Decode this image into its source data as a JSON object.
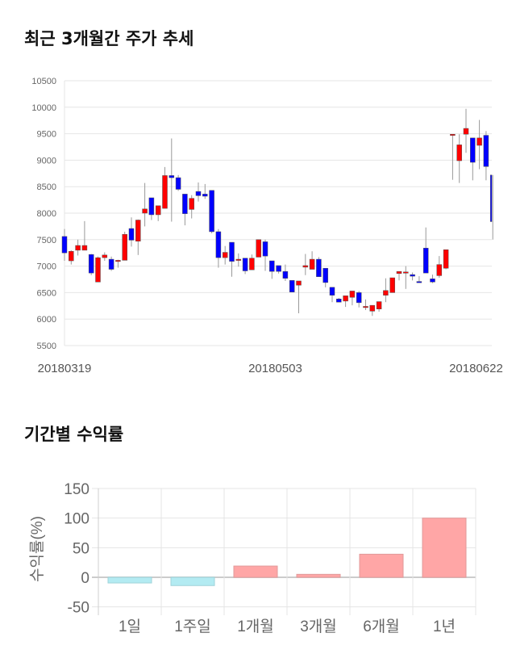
{
  "sections": {
    "price_title": "최근 3개월간 주가 추세",
    "return_title": "기간별 수익률"
  },
  "colors": {
    "up": "#ff0000",
    "down": "#0000ff",
    "wick": "#999999",
    "positive_bar": "#ffa6a6",
    "negative_bar": "#b3ebf2"
  },
  "chart_data": [
    {
      "type": "candlestick",
      "title": "최근 3개월간 주가 추세",
      "ylim": [
        5500,
        10500
      ],
      "yticks": [
        "5500",
        "6000",
        "6500",
        "7000",
        "7500",
        "8000",
        "8500",
        "9000",
        "9500",
        "10000",
        "10500"
      ],
      "xticks": [
        {
          "label": "20180319",
          "index": 0
        },
        {
          "label": "20180503",
          "index": 31.5
        },
        {
          "label": "20180622",
          "index": 61.5
        }
      ],
      "grid": true,
      "candles": [
        [
          7560,
          7700,
          7100,
          7250
        ],
        [
          7100,
          7300,
          7030,
          7280
        ],
        [
          7300,
          7500,
          7200,
          7390
        ],
        [
          7300,
          7850,
          7300,
          7390
        ],
        [
          7220,
          7230,
          6830,
          6870
        ],
        [
          6700,
          7180,
          6700,
          7160
        ],
        [
          7160,
          7260,
          7100,
          7210
        ],
        [
          7130,
          7180,
          6910,
          6940
        ],
        [
          7090,
          7120,
          6970,
          7110
        ],
        [
          7110,
          7650,
          7110,
          7600
        ],
        [
          7710,
          7920,
          7370,
          7490
        ],
        [
          7470,
          7880,
          7210,
          7870
        ],
        [
          8000,
          8570,
          7750,
          8080
        ],
        [
          8290,
          8290,
          7870,
          7970
        ],
        [
          7970,
          8140,
          7850,
          8140
        ],
        [
          8090,
          8870,
          8090,
          8710
        ],
        [
          8710,
          9410,
          7840,
          8670
        ],
        [
          8670,
          8720,
          8420,
          8450
        ],
        [
          8360,
          8360,
          7770,
          7990
        ],
        [
          8070,
          8340,
          7900,
          8280
        ],
        [
          8410,
          8580,
          8220,
          8330
        ],
        [
          8360,
          8550,
          8270,
          8320
        ],
        [
          8430,
          8430,
          7620,
          7650
        ],
        [
          7650,
          7700,
          6970,
          7160
        ],
        [
          7160,
          7380,
          7030,
          7260
        ],
        [
          7450,
          7450,
          6800,
          7090
        ],
        [
          7110,
          7240,
          6990,
          7130
        ],
        [
          7150,
          7150,
          6850,
          6910
        ],
        [
          6930,
          7220,
          6930,
          7150
        ],
        [
          7170,
          7500,
          7170,
          7500
        ],
        [
          7460,
          7500,
          6910,
          7190
        ],
        [
          7100,
          7100,
          6760,
          6900
        ],
        [
          7010,
          7010,
          6860,
          6900
        ],
        [
          6900,
          7030,
          6720,
          6770
        ],
        [
          6730,
          6730,
          6510,
          6510
        ],
        [
          6640,
          6720,
          6110,
          6720
        ],
        [
          6980,
          7230,
          6830,
          7010
        ],
        [
          6940,
          7280,
          6940,
          7130
        ],
        [
          7130,
          7170,
          6800,
          6800
        ],
        [
          6960,
          6960,
          6600,
          6690
        ],
        [
          6600,
          6600,
          6320,
          6450
        ],
        [
          6380,
          6400,
          6320,
          6320
        ],
        [
          6340,
          6440,
          6230,
          6440
        ],
        [
          6410,
          6530,
          6260,
          6530
        ],
        [
          6500,
          6530,
          6220,
          6310
        ],
        [
          6220,
          6370,
          6170,
          6240
        ],
        [
          6150,
          6260,
          6060,
          6260
        ],
        [
          6190,
          6330,
          6140,
          6330
        ],
        [
          6450,
          6770,
          6320,
          6540
        ],
        [
          6500,
          6780,
          6500,
          6780
        ],
        [
          6860,
          6900,
          6730,
          6900
        ],
        [
          6890,
          7000,
          6570,
          6890
        ],
        [
          6840,
          6880,
          6730,
          6810
        ],
        [
          6710,
          6810,
          6700,
          6700
        ],
        [
          7340,
          7730,
          6870,
          6870
        ],
        [
          6760,
          6840,
          6680,
          6700
        ],
        [
          6820,
          7190,
          6780,
          7030
        ],
        [
          6960,
          7310,
          6940,
          7310
        ],
        [
          9490,
          9490,
          8630,
          9490
        ],
        [
          8990,
          9490,
          8570,
          9290
        ],
        [
          9490,
          9970,
          9140,
          9600
        ],
        [
          9420,
          9420,
          8620,
          8960
        ],
        [
          9280,
          9760,
          8830,
          9420
        ],
        [
          9470,
          9550,
          8620,
          8880
        ],
        [
          8720,
          8720,
          7500,
          7840
        ]
      ]
    },
    {
      "type": "bar",
      "title": "기간별 수익률",
      "ylabel": "수익률(%)",
      "ylim": [
        -60,
        150
      ],
      "yticks": [
        "-50",
        "0",
        "50",
        "100",
        "150"
      ],
      "categories": [
        "1일",
        "1주일",
        "1개월",
        "3개월",
        "6개월",
        "1년"
      ],
      "values": [
        -9.6,
        -14,
        19,
        5,
        39,
        100
      ],
      "grid": true
    }
  ]
}
